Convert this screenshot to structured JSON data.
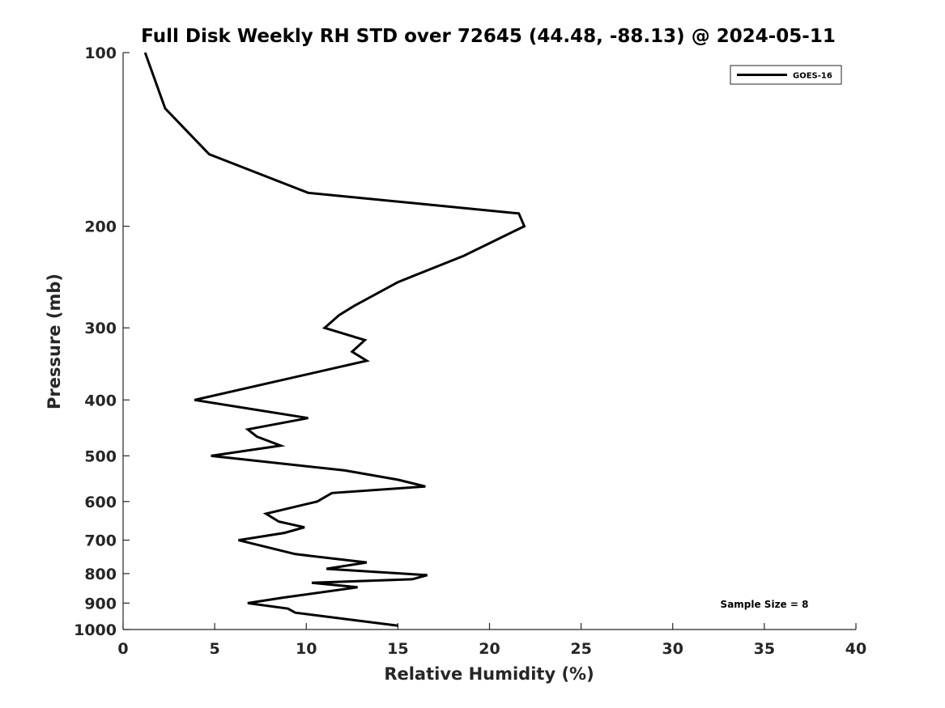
{
  "chart_data": {
    "type": "line",
    "title": "Full Disk Weekly RH STD over 72645 (44.48, -88.13) @ 2024-05-11",
    "xlabel": "Relative Humidity (%)",
    "ylabel": "Pressure (mb)",
    "xlim": [
      0,
      40
    ],
    "ylim": [
      100,
      1000
    ],
    "y_scale": "log",
    "y_reversed": true,
    "x_ticks": [
      0,
      5,
      10,
      15,
      20,
      25,
      30,
      35,
      40
    ],
    "y_ticks": [
      100,
      200,
      300,
      400,
      500,
      600,
      700,
      800,
      900,
      1000
    ],
    "grid": false,
    "legend_position": "top-right",
    "series": [
      {
        "name": "GOES-16",
        "color": "#000000",
        "points": [
          [
            1.2,
            100
          ],
          [
            2.3,
            125
          ],
          [
            4.7,
            150
          ],
          [
            10.1,
            175
          ],
          [
            21.6,
            190
          ],
          [
            21.9,
            200
          ],
          [
            18.6,
            225
          ],
          [
            15.0,
            250
          ],
          [
            12.6,
            275
          ],
          [
            11.8,
            285
          ],
          [
            11.0,
            300
          ],
          [
            13.2,
            315
          ],
          [
            12.5,
            330
          ],
          [
            13.3,
            342
          ],
          [
            8.6,
            370
          ],
          [
            3.9,
            400
          ],
          [
            10.1,
            430
          ],
          [
            6.8,
            450
          ],
          [
            7.3,
            463
          ],
          [
            8.6,
            480
          ],
          [
            4.8,
            500
          ],
          [
            12.1,
            530
          ],
          [
            15.0,
            550
          ],
          [
            16.5,
            565
          ],
          [
            11.4,
            580
          ],
          [
            10.6,
            600
          ],
          [
            7.8,
            630
          ],
          [
            8.5,
            650
          ],
          [
            9.9,
            665
          ],
          [
            8.8,
            680
          ],
          [
            6.3,
            700
          ],
          [
            9.4,
            740
          ],
          [
            13.3,
            765
          ],
          [
            11.1,
            785
          ],
          [
            16.6,
            805
          ],
          [
            15.8,
            818
          ],
          [
            10.3,
            830
          ],
          [
            12.8,
            845
          ],
          [
            8.8,
            880
          ],
          [
            6.8,
            900
          ],
          [
            9.0,
            920
          ],
          [
            9.4,
            935
          ],
          [
            15.0,
            985
          ]
        ]
      }
    ],
    "annotations": [
      {
        "text": "Sample Size = 8"
      }
    ]
  }
}
